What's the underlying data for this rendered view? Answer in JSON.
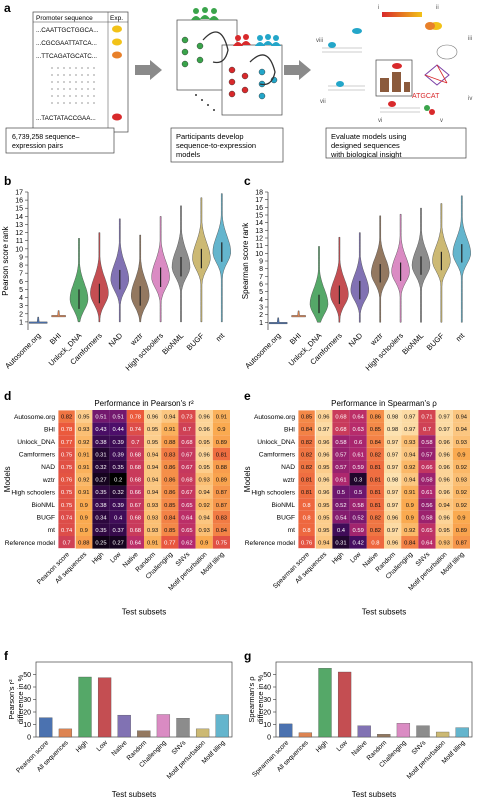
{
  "panel_a": {
    "letter": "a",
    "table_header": [
      "Promoter sequence",
      "Exp."
    ],
    "sequences": [
      "...CAATTGCTGGCA...",
      "...CGCGAATTATCA...",
      "...TTCAGATGCATC...",
      "...TACTATACCGAA..."
    ],
    "pairs_label": "6,739,258 sequence-expression pairs",
    "participants_label": "Participants develop sequence-to-expression models",
    "evaluate_label": "Evaluate models using designed sequences with biological insight",
    "roman": [
      "i",
      "ii",
      "iii",
      "iv",
      "v",
      "vi",
      "vii",
      "viii"
    ],
    "motif_text": "ATGCAT",
    "colors": {
      "yellow": "#f2c218",
      "orange": "#e8802a",
      "red": "#d8292b",
      "green": "#3aa44b",
      "teal": "#23a6c9"
    }
  },
  "chart_data": [
    {
      "panel": "b",
      "type": "violin",
      "categories": [
        "Autosome.org",
        "BHI",
        "Unlock_DNA",
        "Camformers",
        "NAD",
        "wztr",
        "High schoolers",
        "BioNML",
        "BUGF",
        "mt"
      ],
      "ylabel": "Pearson score rank",
      "ylim": [
        0,
        17
      ],
      "yticks": [
        1,
        2,
        3,
        4,
        5,
        6,
        7,
        8,
        9,
        10,
        11,
        12,
        13,
        14,
        15,
        16,
        17
      ],
      "medians": [
        1.0,
        1.8,
        3.8,
        4.5,
        6.2,
        4.2,
        6.5,
        7.8,
        8.8,
        9.6
      ],
      "colors": [
        "#4b72b0",
        "#dd8452",
        "#55a868",
        "#c44e52",
        "#8172b3",
        "#937860",
        "#da8bc3",
        "#8c8c8c",
        "#ccb974",
        "#64b5cd"
      ]
    },
    {
      "panel": "c",
      "type": "violin",
      "categories": [
        "Autosome.org",
        "BHI",
        "Unlock_DNA",
        "Camformers",
        "NAD",
        "wztr",
        "High schoolers",
        "BioNML",
        "BUGF",
        "mt"
      ],
      "ylabel": "Spearman score rank",
      "ylim": [
        0,
        18
      ],
      "yticks": [
        1,
        2,
        3,
        4,
        5,
        6,
        7,
        8,
        9,
        10,
        11,
        12,
        13,
        14,
        15,
        16,
        17,
        18
      ],
      "medians": [
        1.0,
        1.9,
        3.4,
        4.6,
        5.2,
        7.4,
        7.6,
        8.4,
        9.0,
        10.0
      ],
      "colors": [
        "#4b72b0",
        "#dd8452",
        "#55a868",
        "#c44e52",
        "#8172b3",
        "#937860",
        "#da8bc3",
        "#8c8c8c",
        "#ccb974",
        "#64b5cd"
      ]
    },
    {
      "panel": "d",
      "type": "heatmap",
      "title": "Performance in Pearson's r²",
      "xlabel": "Test subsets",
      "ylabel": "Models",
      "columns": [
        "Pearson score",
        "All sequences",
        "High",
        "Low",
        "Native",
        "Random",
        "Challenging",
        "SNVs",
        "Motif perturbation",
        "Motif tiling"
      ],
      "rows": [
        "Autosome.org",
        "BHI",
        "Unlock_DNA",
        "Camformers",
        "NAD",
        "wztr",
        "High schoolers",
        "BioNML",
        "BUGF",
        "mt",
        "Reference model"
      ],
      "values": [
        [
          "0.82",
          "0.95",
          "0.51",
          "0.51",
          "0.78",
          "0.96",
          "0.94",
          "0.73",
          "0.96",
          "0.91"
        ],
        [
          "0.78",
          "0.93",
          "0.43",
          "0.44",
          "0.74",
          "0.95",
          "0.91",
          "0.7",
          "0.96",
          "0.9"
        ],
        [
          "0.77",
          "0.92",
          "0.38",
          "0.39",
          "0.7",
          "0.95",
          "0.88",
          "0.68",
          "0.95",
          "0.89"
        ],
        [
          "0.75",
          "0.91",
          "0.31",
          "0.39",
          "0.68",
          "0.94",
          "0.83",
          "0.67",
          "0.96",
          "0.81"
        ],
        [
          "0.75",
          "0.91",
          "0.32",
          "0.35",
          "0.68",
          "0.94",
          "0.86",
          "0.67",
          "0.95",
          "0.88"
        ],
        [
          "0.76",
          "0.92",
          "0.27",
          "0.2",
          "0.68",
          "0.94",
          "0.86",
          "0.68",
          "0.93",
          "0.89"
        ],
        [
          "0.75",
          "0.91",
          "0.35",
          "0.32",
          "0.66",
          "0.94",
          "0.86",
          "0.67",
          "0.94",
          "0.87"
        ],
        [
          "0.75",
          "0.9",
          "0.38",
          "0.39",
          "0.67",
          "0.93",
          "0.85",
          "0.65",
          "0.92",
          "0.87"
        ],
        [
          "0.74",
          "0.9",
          "0.34",
          "0.4",
          "0.68",
          "0.93",
          "0.84",
          "0.64",
          "0.94",
          "0.83"
        ],
        [
          "0.74",
          "0.9",
          "0.35",
          "0.37",
          "0.68",
          "0.93",
          "0.85",
          "0.65",
          "0.93",
          "0.84"
        ],
        [
          "0.7",
          "0.88",
          "0.25",
          "0.27",
          "0.64",
          "0.91",
          "0.77",
          "0.62",
          "0.9",
          "0.75"
        ]
      ]
    },
    {
      "panel": "e",
      "type": "heatmap",
      "title": "Performance in Spearman's ρ",
      "xlabel": "Test subsets",
      "ylabel": "Models",
      "columns": [
        "Spearman score",
        "All sequences",
        "High",
        "Low",
        "Native",
        "Random",
        "Challenging",
        "SNVs",
        "Motif perturbation",
        "Motif tiling"
      ],
      "rows": [
        "Autosome.org",
        "BHI",
        "Unlock_DNA",
        "Camformers",
        "NAD",
        "wztr",
        "High schoolers",
        "BioNML",
        "BUGF",
        "mt",
        "Reference model"
      ],
      "values": [
        [
          "0.85",
          "0.96",
          "0.68",
          "0.64",
          "0.86",
          "0.98",
          "0.97",
          "0.71",
          "0.97",
          "0.94"
        ],
        [
          "0.84",
          "0.97",
          "0.68",
          "0.63",
          "0.85",
          "0.98",
          "0.97",
          "0.7",
          "0.97",
          "0.94"
        ],
        [
          "0.82",
          "0.96",
          "0.58",
          "0.6",
          "0.84",
          "0.97",
          "0.93",
          "0.58",
          "0.96",
          "0.93"
        ],
        [
          "0.82",
          "0.96",
          "0.57",
          "0.61",
          "0.82",
          "0.97",
          "0.94",
          "0.57",
          "0.96",
          "0.9"
        ],
        [
          "0.82",
          "0.95",
          "0.57",
          "0.59",
          "0.81",
          "0.97",
          "0.92",
          "0.66",
          "0.96",
          "0.92"
        ],
        [
          "0.81",
          "0.96",
          "0.61",
          "0.3",
          "0.81",
          "0.98",
          "0.94",
          "0.58",
          "0.96",
          "0.93"
        ],
        [
          "0.81",
          "0.96",
          "0.5",
          "0.5",
          "0.81",
          "0.97",
          "0.91",
          "0.61",
          "0.96",
          "0.92"
        ],
        [
          "0.8",
          "0.95",
          "0.52",
          "0.58",
          "0.81",
          "0.97",
          "0.9",
          "0.56",
          "0.94",
          "0.92"
        ],
        [
          "0.8",
          "0.95",
          "0.54",
          "0.52",
          "0.82",
          "0.96",
          "0.9",
          "0.58",
          "0.96",
          "0.9"
        ],
        [
          "0.8",
          "0.95",
          "0.4",
          "0.59",
          "0.82",
          "0.97",
          "0.92",
          "0.65",
          "0.95",
          "0.89"
        ],
        [
          "0.76",
          "0.94",
          "0.31",
          "0.42",
          "0.8",
          "0.96",
          "0.84",
          "0.64",
          "0.93",
          "0.87"
        ]
      ]
    },
    {
      "panel": "f",
      "type": "bar",
      "categories": [
        "Pearson score",
        "All sequences",
        "High",
        "Low",
        "Native",
        "Random",
        "Challenging",
        "SNVs",
        "Motif perturbation",
        "Motif tiling"
      ],
      "values": [
        15.5,
        6.5,
        48,
        47.5,
        17.5,
        5,
        18,
        15,
        6.5,
        18
      ],
      "xlabel": "Test subsets",
      "ylabel": "Pearson's r² difference in %",
      "ylim": [
        0,
        60
      ],
      "yticks": [
        0,
        10,
        20,
        30,
        40,
        50
      ],
      "colors": [
        "#4b72b0",
        "#dd8452",
        "#55a868",
        "#c44e52",
        "#8172b3",
        "#937860",
        "#da8bc3",
        "#8c8c8c",
        "#ccb974",
        "#64b5cd"
      ]
    },
    {
      "panel": "g",
      "type": "bar",
      "categories": [
        "Spearman score",
        "All sequences",
        "High",
        "Low",
        "Native",
        "Random",
        "Challenging",
        "SNVs",
        "Motif perturbation",
        "Motif tiling"
      ],
      "values": [
        10.5,
        3.5,
        55,
        52,
        9,
        2.2,
        11,
        9,
        4,
        7.5
      ],
      "xlabel": "Test subsets",
      "ylabel": "Spearman's ρ difference in %",
      "ylim": [
        0,
        60
      ],
      "yticks": [
        0,
        10,
        20,
        30,
        40,
        50
      ],
      "colors": [
        "#4b72b0",
        "#dd8452",
        "#55a868",
        "#c44e52",
        "#8172b3",
        "#937860",
        "#da8bc3",
        "#8c8c8c",
        "#ccb974",
        "#64b5cd"
      ]
    }
  ]
}
